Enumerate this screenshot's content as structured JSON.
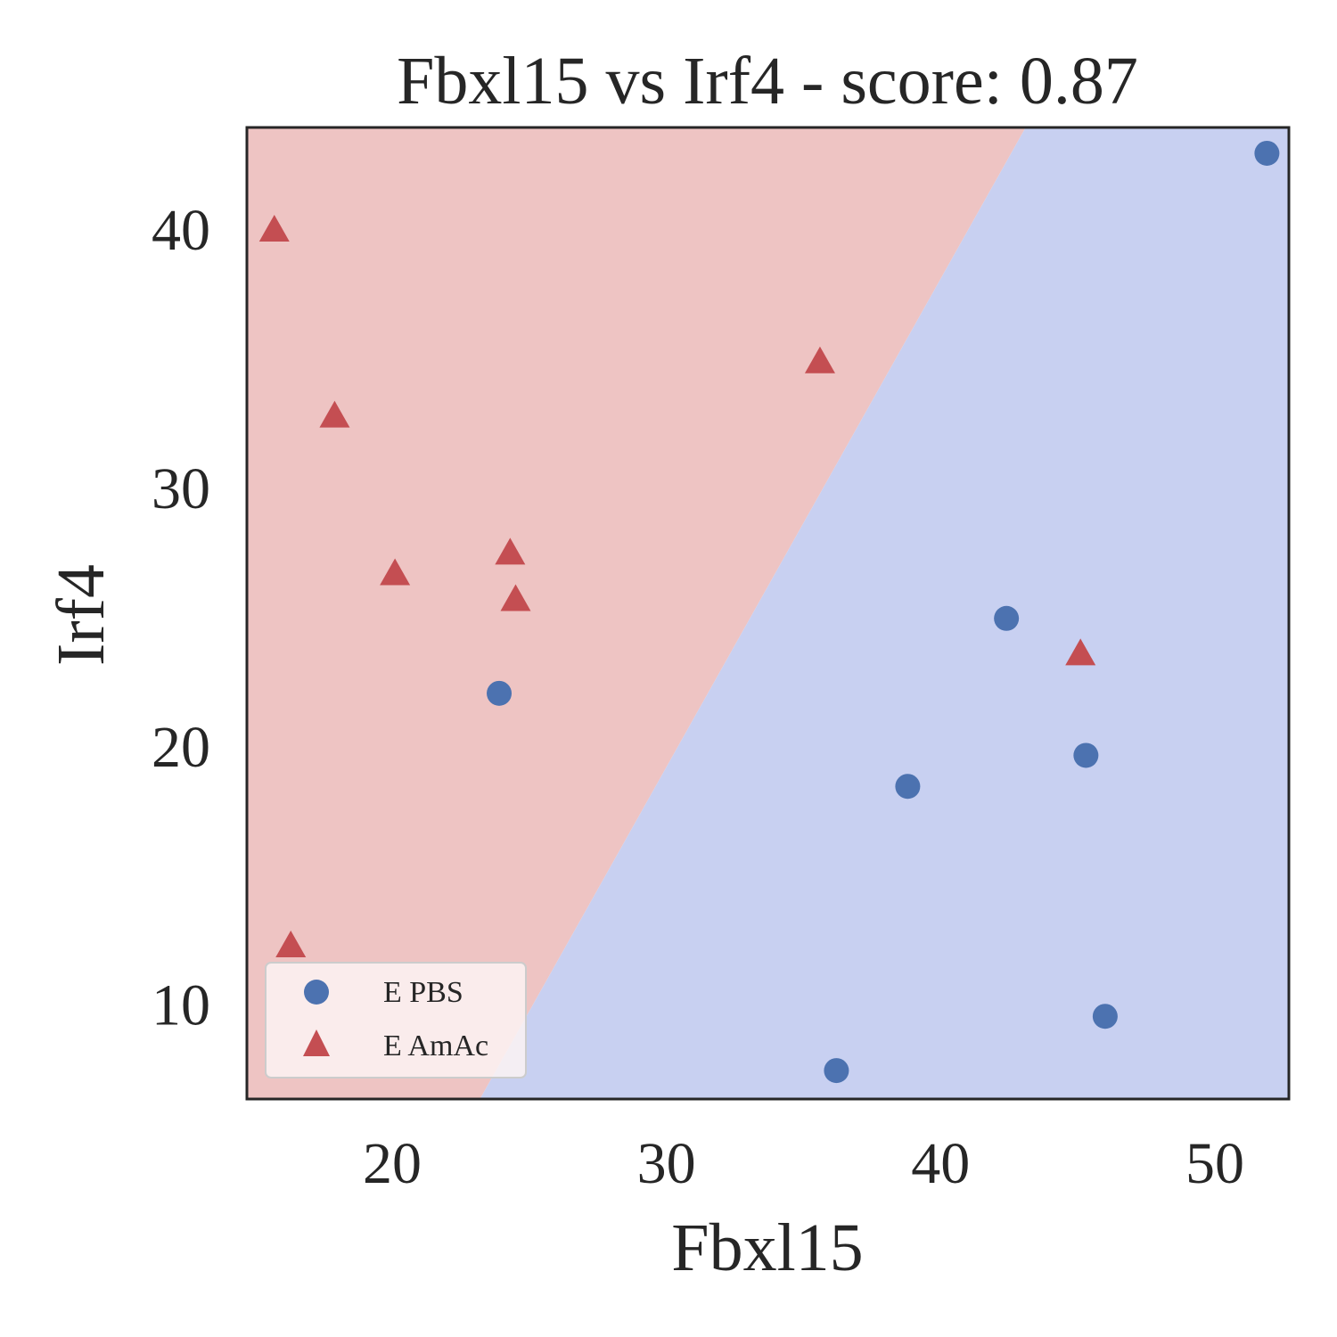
{
  "chart_data": {
    "type": "scatter",
    "title": "Fbxl15 vs Irf4 - score: 0.87",
    "xlabel": "Fbxl15",
    "ylabel": "Irf4",
    "xlim": [
      14.7,
      52.7
    ],
    "ylim": [
      6.3,
      43.9
    ],
    "xticks": [
      20,
      30,
      40,
      50
    ],
    "yticks": [
      10,
      20,
      30,
      40
    ],
    "grid": false,
    "legend_position": "lower-left",
    "decision_regions": {
      "boundary": [
        [
          23.2,
          6.3
        ],
        [
          43.1,
          43.9
        ]
      ],
      "left_region_class": "E AmAc",
      "right_region_class": "E PBS",
      "colors": {
        "E AmAc": "#eec4c3",
        "E PBS": "#c8d0f1"
      }
    },
    "series": [
      {
        "name": "E PBS",
        "marker": "circle",
        "color": "#4c72b0",
        "points": [
          [
            51.9,
            42.9
          ],
          [
            42.4,
            24.9
          ],
          [
            23.9,
            22.0
          ],
          [
            45.3,
            19.6
          ],
          [
            38.8,
            18.4
          ],
          [
            46.0,
            9.5
          ],
          [
            36.2,
            7.4
          ]
        ]
      },
      {
        "name": "E AmAc",
        "marker": "triangle",
        "color": "#c44e52",
        "points": [
          [
            15.7,
            39.9
          ],
          [
            35.6,
            34.8
          ],
          [
            17.9,
            32.7
          ],
          [
            24.3,
            27.4
          ],
          [
            20.1,
            26.6
          ],
          [
            24.5,
            25.6
          ],
          [
            45.1,
            23.5
          ],
          [
            16.3,
            12.2
          ]
        ]
      }
    ]
  }
}
